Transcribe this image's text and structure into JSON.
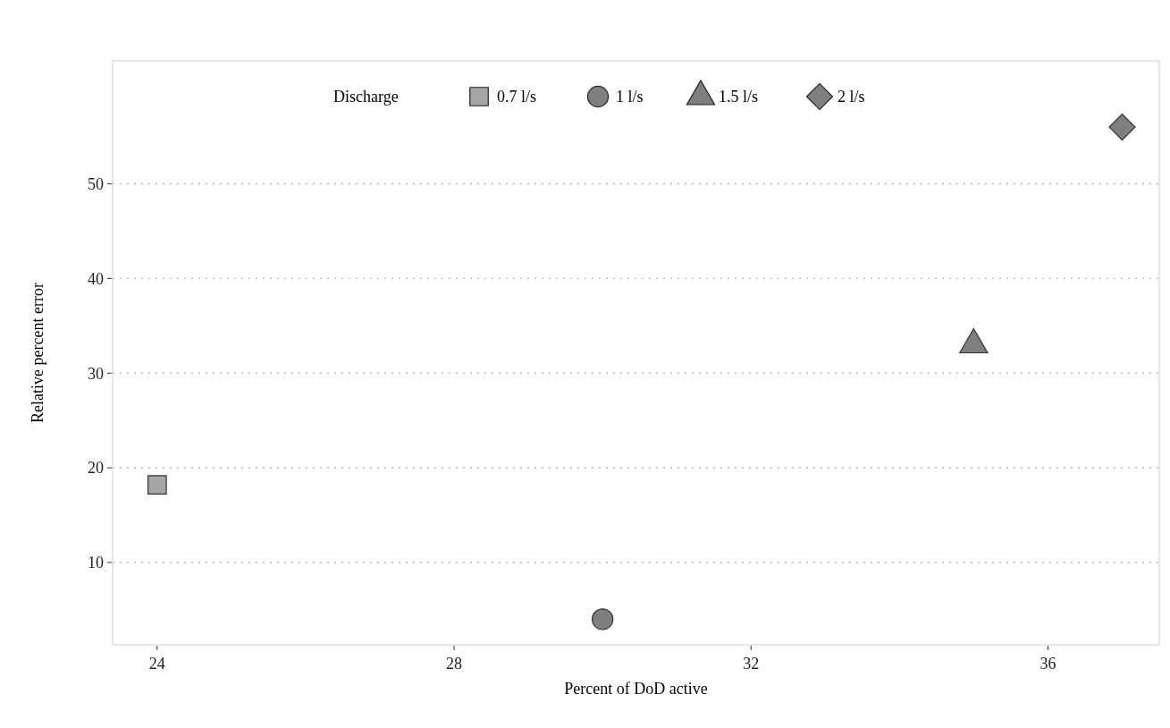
{
  "chart_data": {
    "type": "scatter",
    "xlabel": "Percent of DoD active",
    "ylabel": "Relative percent error",
    "legend_title": "Discharge",
    "legend": "top",
    "grid": "y",
    "xlim": [
      23.4,
      37.5
    ],
    "xticks": [
      24,
      28,
      32,
      36
    ],
    "ylim": [
      1.3,
      63
    ],
    "yticks": [
      10,
      20,
      30,
      40,
      50
    ],
    "series": [
      {
        "name": "0.7 l/s",
        "color": "#a6a6a6",
        "marker": "square",
        "x": [
          24
        ],
        "values": [
          18.2
        ]
      },
      {
        "name": "1 l/s",
        "color": "#7f7f7f",
        "marker": "circle",
        "x": [
          30
        ],
        "values": [
          4
        ]
      },
      {
        "name": "1.5 l/s",
        "color": "#7f7f7f",
        "marker": "triangle",
        "x": [
          35
        ],
        "values": [
          33
        ]
      },
      {
        "name": "2 l/s",
        "color": "#7f7f7f",
        "marker": "diamond",
        "x": [
          37
        ],
        "values": [
          56
        ]
      }
    ]
  }
}
